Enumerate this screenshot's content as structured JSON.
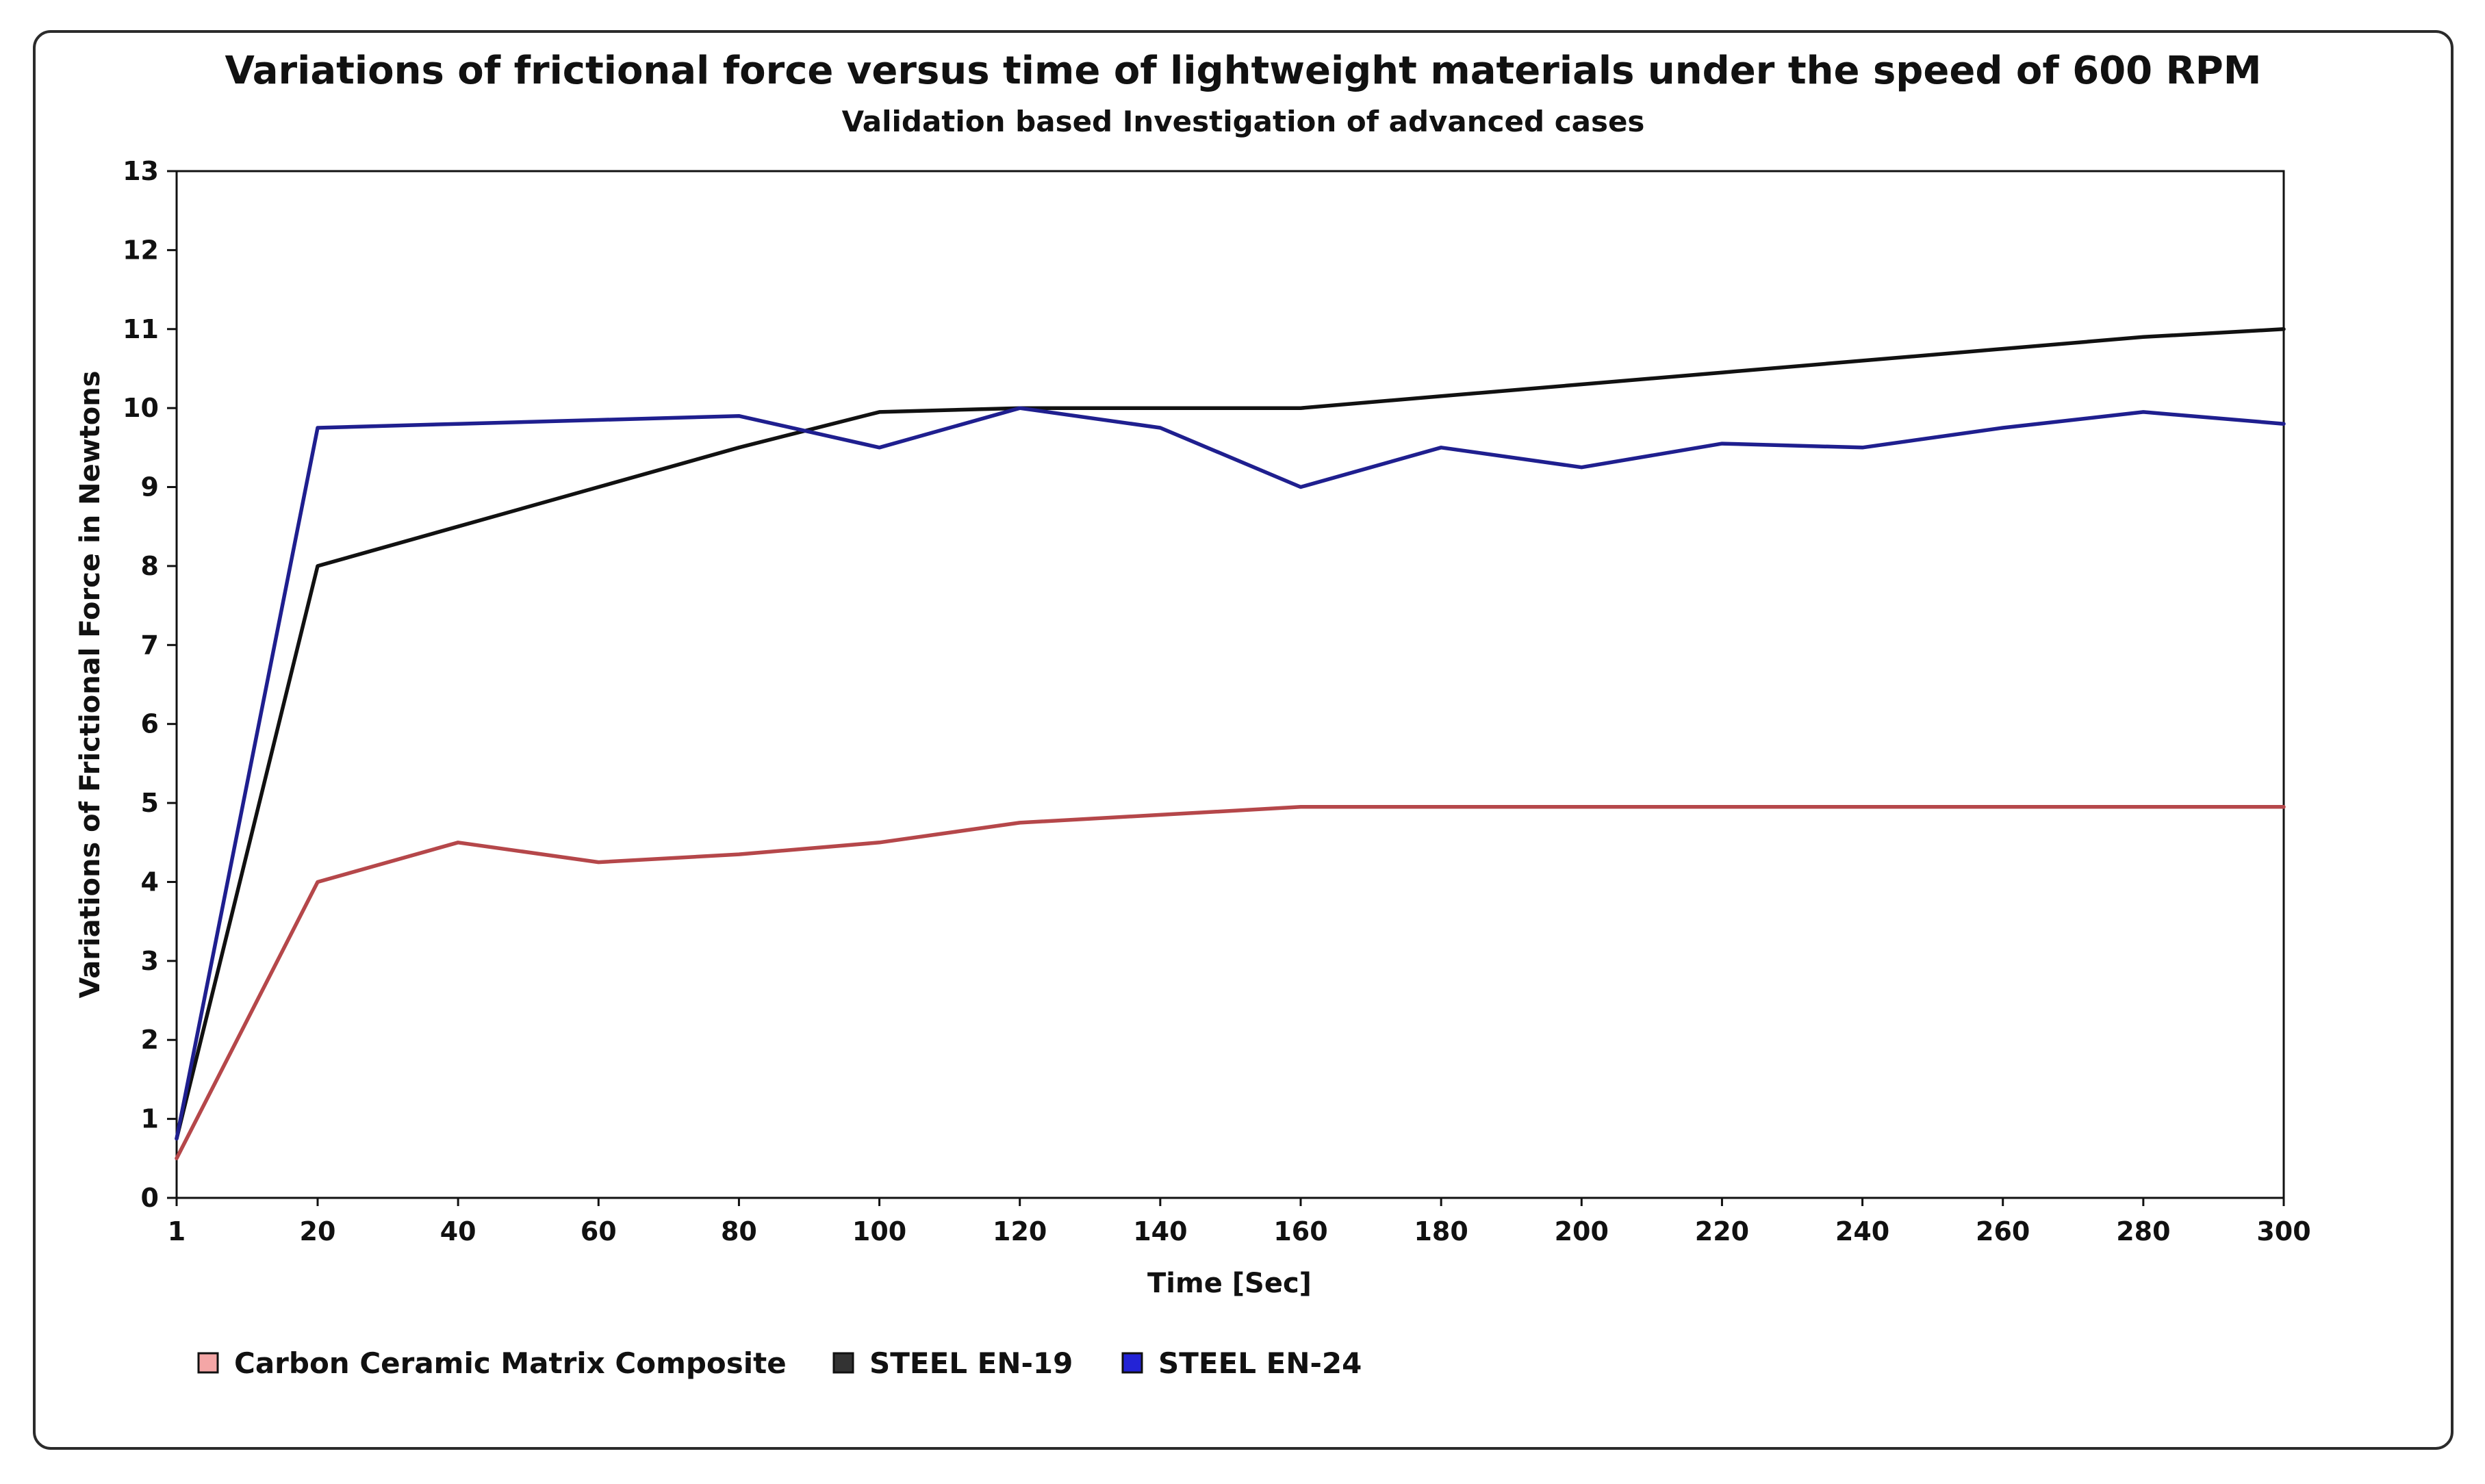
{
  "chart_data": {
    "type": "line",
    "title": "Variations of frictional force versus time of lightweight materials under the speed of 600 RPM",
    "subtitle": "Validation based Investigation of advanced cases",
    "xlabel": "Time [Sec]",
    "ylabel": "Variations of Frictional Force in Newtons",
    "categories": [
      "1",
      "20",
      "40",
      "60",
      "80",
      "100",
      "120",
      "140",
      "160",
      "180",
      "200",
      "220",
      "240",
      "260",
      "280",
      "300"
    ],
    "ylim": [
      0,
      13
    ],
    "yticks": [
      "0",
      "1",
      "2",
      "3",
      "4",
      "5",
      "6",
      "7",
      "8",
      "9",
      "10",
      "11",
      "12",
      "13"
    ],
    "grid": false,
    "legend_position": "bottom-left",
    "series": [
      {
        "name": "Carbon Ceramic Matrix Composite",
        "color": "#b5474a",
        "swatch": "#f4a6a6",
        "values": [
          0.5,
          4.0,
          4.5,
          4.25,
          4.35,
          4.5,
          4.75,
          4.85,
          4.95,
          4.95,
          4.95,
          4.95,
          4.95,
          4.95,
          4.95,
          4.95
        ]
      },
      {
        "name": "STEEL EN-19",
        "color": "#111111",
        "swatch": "#333333",
        "values": [
          0.75,
          8.0,
          8.5,
          9.0,
          9.5,
          9.95,
          10.0,
          10.0,
          10.0,
          10.15,
          10.3,
          10.45,
          10.6,
          10.75,
          10.9,
          11.0
        ]
      },
      {
        "name": "STEEL EN-24",
        "color": "#1f1f8f",
        "swatch": "#2323d6",
        "values": [
          0.75,
          9.75,
          9.8,
          9.85,
          9.9,
          9.5,
          10.0,
          9.75,
          9.0,
          9.5,
          9.25,
          9.55,
          9.5,
          9.75,
          9.95,
          9.8
        ]
      }
    ]
  }
}
